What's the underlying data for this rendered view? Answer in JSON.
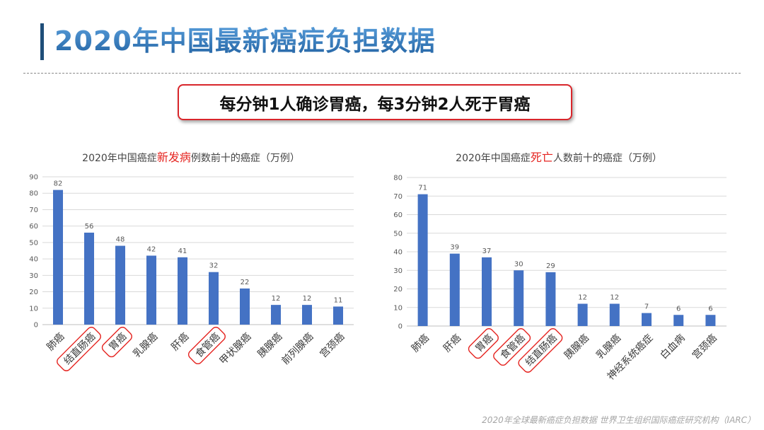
{
  "header": {
    "title": "2020年中国最新癌症负担数据",
    "callout": "每分钟1人确诊胃癌，每3分钟2人死于胃癌"
  },
  "footer": {
    "source": "2020年全球最新癌症负担数据  世界卫生组织国际癌症研究机构（IARC）"
  },
  "colors": {
    "bar": "#4472c4",
    "highlight": "#e52420",
    "accent": "#2e75b6",
    "callout_border": "#d9262b"
  },
  "chart_data": [
    {
      "type": "bar",
      "title_parts": [
        {
          "text": "2020年中国癌症",
          "highlight": false
        },
        {
          "text": "新发病",
          "highlight": true
        },
        {
          "text": "例数前十的癌症（万例）",
          "highlight": false
        }
      ],
      "categories": [
        "肺癌",
        "结直肠癌",
        "胃癌",
        "乳腺癌",
        "肝癌",
        "食管癌",
        "甲状腺癌",
        "胰腺癌",
        "前列腺癌",
        "宫颈癌"
      ],
      "values": [
        82,
        56,
        48,
        42,
        41,
        32,
        22,
        12,
        12,
        11
      ],
      "ylim": [
        0,
        90
      ],
      "yticks": [
        0,
        10,
        20,
        30,
        40,
        50,
        60,
        70,
        80,
        90
      ],
      "grid": true,
      "circled": [
        "结直肠癌",
        "胃癌",
        "食管癌"
      ]
    },
    {
      "type": "bar",
      "title_parts": [
        {
          "text": "2020年中国癌症",
          "highlight": false
        },
        {
          "text": "死亡",
          "highlight": true
        },
        {
          "text": "人数前十的癌症（万例）",
          "highlight": false
        }
      ],
      "categories": [
        "肺癌",
        "肝癌",
        "胃癌",
        "食管癌",
        "结直肠癌",
        "胰腺癌",
        "乳腺癌",
        "神经系统癌症",
        "白血病",
        "宫颈癌"
      ],
      "values": [
        71,
        39,
        37,
        30,
        29,
        12,
        12,
        7,
        6,
        6
      ],
      "ylim": [
        0,
        80
      ],
      "yticks": [
        0,
        10,
        20,
        30,
        40,
        50,
        60,
        70,
        80
      ],
      "grid": true,
      "circled": [
        "胃癌",
        "食管癌",
        "结直肠癌"
      ]
    }
  ]
}
